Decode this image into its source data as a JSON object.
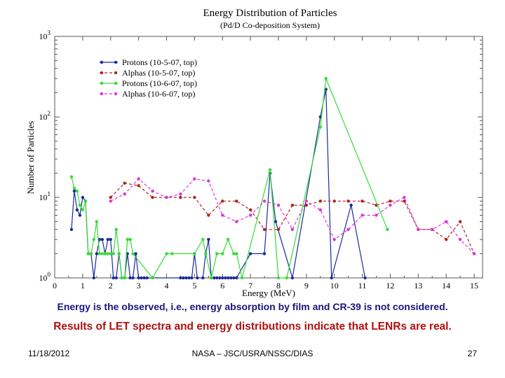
{
  "chart_data": {
    "type": "line",
    "title": "Energy Distribution of Particles",
    "subtitle": "(Pd/D Co-deposition System)",
    "xlabel": "Energy (MeV)",
    "ylabel": "Number of Particles",
    "xlim": [
      0,
      15.3
    ],
    "ylim": [
      1,
      1000
    ],
    "yscale": "log",
    "x_ticks": [
      "0",
      "1",
      "2",
      "3",
      "4",
      "5",
      "6",
      "7",
      "8",
      "9",
      "10",
      "11",
      "12",
      "13",
      "14",
      "15"
    ],
    "y_ticks": [
      {
        "base": "10",
        "exp": "0"
      },
      {
        "base": "10",
        "exp": "1"
      },
      {
        "base": "10",
        "exp": "2"
      },
      {
        "base": "10",
        "exp": "3"
      }
    ],
    "legend_position": "top-left",
    "series": [
      {
        "name": "Protons (10-5-07, top)",
        "color": "#1a2a9c",
        "dash": "solid",
        "points": [
          [
            0.6,
            4
          ],
          [
            0.7,
            12
          ],
          [
            0.8,
            7
          ],
          [
            0.9,
            6
          ],
          [
            1.0,
            10
          ],
          [
            1.1,
            9
          ],
          [
            1.2,
            2
          ],
          [
            1.3,
            2
          ],
          [
            1.4,
            1
          ],
          [
            1.5,
            2
          ],
          [
            1.6,
            3
          ],
          [
            1.7,
            3
          ],
          [
            1.8,
            2
          ],
          [
            1.9,
            3
          ],
          [
            2.0,
            3
          ],
          [
            2.1,
            1
          ],
          [
            2.2,
            1
          ],
          [
            2.3,
            2
          ],
          [
            2.4,
            1
          ],
          [
            2.5,
            1
          ],
          [
            2.6,
            2
          ],
          [
            2.7,
            1
          ],
          [
            2.8,
            1
          ],
          [
            2.9,
            2
          ],
          [
            3.0,
            1
          ],
          [
            3.1,
            1
          ],
          [
            3.2,
            1
          ],
          [
            3.3,
            1
          ],
          [
            4.5,
            1
          ],
          [
            4.6,
            1
          ],
          [
            4.7,
            1
          ],
          [
            4.8,
            1
          ],
          [
            4.9,
            1
          ],
          [
            5.0,
            2
          ],
          [
            5.1,
            1
          ],
          [
            5.3,
            1
          ],
          [
            5.4,
            2
          ],
          [
            5.5,
            3
          ],
          [
            5.6,
            1
          ],
          [
            5.7,
            1
          ],
          [
            5.8,
            1
          ],
          [
            5.9,
            1
          ],
          [
            6.0,
            1
          ],
          [
            6.1,
            1
          ],
          [
            6.2,
            1
          ],
          [
            6.3,
            1
          ],
          [
            6.4,
            1
          ],
          [
            6.5,
            1
          ],
          [
            7.0,
            2
          ],
          [
            7.5,
            2
          ],
          [
            7.7,
            20
          ],
          [
            7.9,
            5
          ],
          [
            8.5,
            1
          ],
          [
            9.5,
            100
          ],
          [
            9.7,
            220
          ],
          [
            9.9,
            1
          ],
          [
            10.6,
            8
          ],
          [
            11.1,
            1
          ]
        ]
      },
      {
        "name": "Alphas (10-5-07, top)",
        "color": "#b22020",
        "dash": "dashed",
        "points": [
          [
            2.0,
            10
          ],
          [
            2.5,
            15
          ],
          [
            3.0,
            14
          ],
          [
            3.5,
            10
          ],
          [
            4.0,
            10
          ],
          [
            4.5,
            10
          ],
          [
            5.0,
            10
          ],
          [
            5.5,
            6
          ],
          [
            6.0,
            9
          ],
          [
            6.5,
            9
          ],
          [
            7.0,
            7
          ],
          [
            7.5,
            4
          ],
          [
            8.0,
            4
          ],
          [
            8.5,
            8
          ],
          [
            9.0,
            8
          ],
          [
            9.5,
            9
          ],
          [
            10.0,
            9
          ],
          [
            10.5,
            9
          ],
          [
            11.0,
            9
          ],
          [
            11.5,
            8
          ],
          [
            12.0,
            9
          ],
          [
            12.5,
            9
          ],
          [
            13.0,
            4
          ],
          [
            13.5,
            4
          ],
          [
            14.0,
            3
          ],
          [
            14.5,
            5
          ],
          [
            15.0,
            2
          ]
        ]
      },
      {
        "name": "Protons (10-6-07, top)",
        "color": "#33dd33",
        "dash": "solid",
        "points": [
          [
            0.6,
            18
          ],
          [
            0.7,
            13
          ],
          [
            0.8,
            12
          ],
          [
            0.9,
            8
          ],
          [
            1.0,
            7
          ],
          [
            1.1,
            9
          ],
          [
            1.2,
            2
          ],
          [
            1.3,
            2
          ],
          [
            1.4,
            3
          ],
          [
            1.5,
            5
          ],
          [
            1.6,
            2
          ],
          [
            1.7,
            2
          ],
          [
            1.8,
            2
          ],
          [
            1.9,
            2
          ],
          [
            2.0,
            2
          ],
          [
            2.1,
            2
          ],
          [
            2.2,
            4
          ],
          [
            2.3,
            2
          ],
          [
            2.4,
            1
          ],
          [
            2.5,
            1
          ],
          [
            2.6,
            3
          ],
          [
            2.7,
            3
          ],
          [
            2.8,
            2
          ],
          [
            3.5,
            1
          ],
          [
            4.0,
            2
          ],
          [
            4.2,
            2
          ],
          [
            5.0,
            2
          ],
          [
            5.3,
            3
          ],
          [
            5.4,
            2
          ],
          [
            5.6,
            1
          ],
          [
            5.8,
            2
          ],
          [
            6.0,
            2
          ],
          [
            6.2,
            3
          ],
          [
            6.4,
            2
          ],
          [
            6.5,
            2
          ],
          [
            6.7,
            1
          ],
          [
            7.7,
            22
          ],
          [
            8.0,
            1
          ],
          [
            8.3,
            1
          ],
          [
            9.5,
            75
          ],
          [
            9.7,
            300
          ],
          [
            11.9,
            4
          ]
        ]
      },
      {
        "name": "Alphas (10-6-07, top)",
        "color": "#dd33dd",
        "dash": "dashed",
        "points": [
          [
            2.0,
            9
          ],
          [
            2.5,
            11
          ],
          [
            3.0,
            17
          ],
          [
            3.5,
            12
          ],
          [
            4.0,
            10
          ],
          [
            4.5,
            11
          ],
          [
            5.0,
            17
          ],
          [
            5.5,
            16
          ],
          [
            6.0,
            6
          ],
          [
            6.5,
            5
          ],
          [
            7.0,
            6
          ],
          [
            7.5,
            9
          ],
          [
            8.0,
            8
          ],
          [
            8.5,
            4
          ],
          [
            9.0,
            9
          ],
          [
            9.5,
            7
          ],
          [
            10.0,
            3
          ],
          [
            10.5,
            4
          ],
          [
            11.0,
            6
          ],
          [
            11.5,
            6
          ],
          [
            12.0,
            8
          ],
          [
            12.5,
            10
          ],
          [
            13.0,
            4
          ],
          [
            13.5,
            4
          ],
          [
            14.0,
            5
          ],
          [
            14.5,
            3
          ],
          [
            15.0,
            2
          ]
        ]
      }
    ]
  },
  "notes": {
    "observed": "Energy is the observed, i.e., energy absorption by film and CR-39 is not considered.",
    "results": "Results of LET spectra and energy distributions indicate that LENRs are real."
  },
  "footer": {
    "date": "11/18/2012",
    "organization": "NASA – JSC/USRA/NSSC/DIAS",
    "page_number": "27"
  }
}
